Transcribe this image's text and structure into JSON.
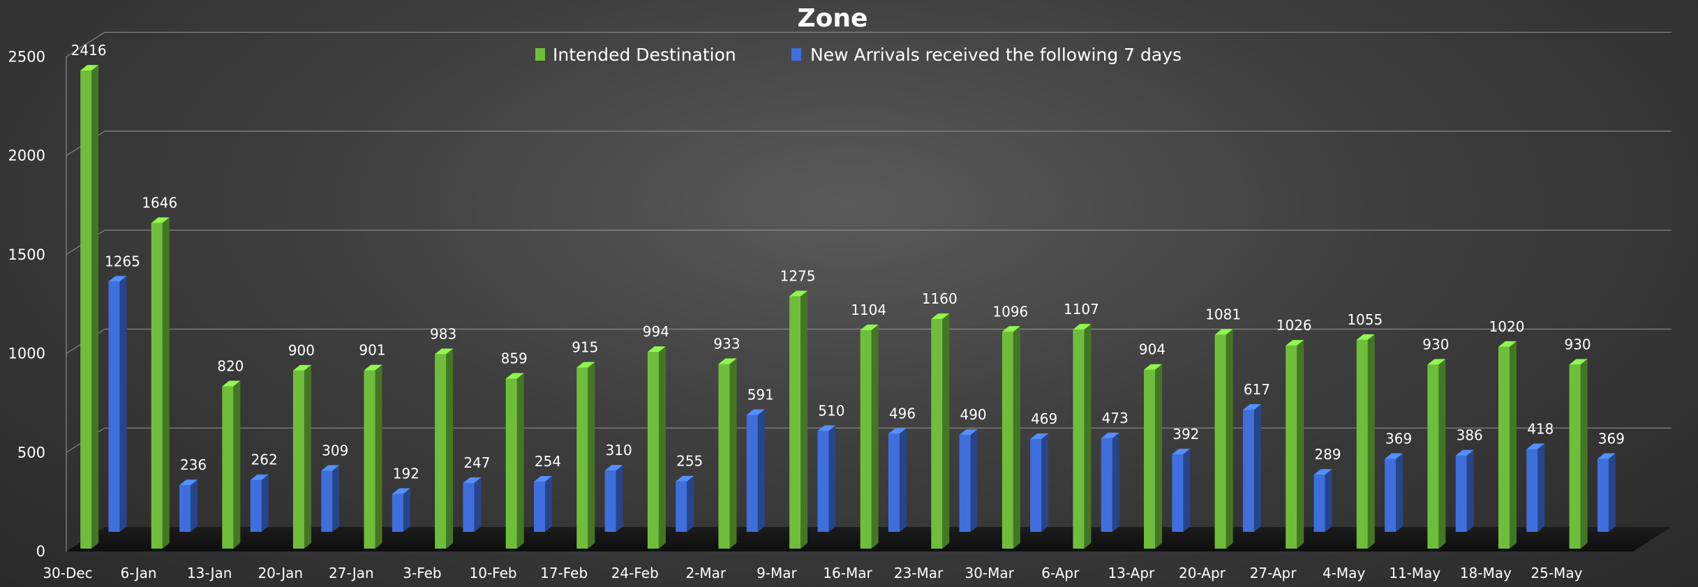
{
  "chart_data": {
    "type": "bar",
    "title": "Zone",
    "categories": [
      "30-Dec",
      "6-Jan",
      "13-Jan",
      "20-Jan",
      "27-Jan",
      "3-Feb",
      "10-Feb",
      "17-Feb",
      "24-Feb",
      "2-Mar",
      "9-Mar",
      "16-Mar",
      "23-Mar",
      "30-Mar",
      "6-Apr",
      "13-Apr",
      "20-Apr",
      "27-Apr",
      "4-May",
      "11-May",
      "18-May",
      "25-May"
    ],
    "series": [
      {
        "name": "Intended Destination",
        "color": "#6fbe3b",
        "values": [
          2416,
          1646,
          820,
          900,
          901,
          983,
          859,
          915,
          994,
          933,
          1275,
          1104,
          1160,
          1096,
          1107,
          904,
          1081,
          1026,
          1055,
          930,
          1020,
          930
        ]
      },
      {
        "name": "New Arrivals received the following 7 days",
        "color": "#3f6fdc",
        "values": [
          1265,
          236,
          262,
          309,
          192,
          247,
          254,
          310,
          255,
          591,
          510,
          496,
          490,
          469,
          473,
          392,
          617,
          289,
          369,
          386,
          418,
          369
        ]
      }
    ],
    "yticks": [
      0,
      500,
      1000,
      1500,
      2000,
      2500
    ],
    "ylim": [
      0,
      2500
    ],
    "grid": true,
    "legend_position": "top-center",
    "style": "3d-column"
  }
}
